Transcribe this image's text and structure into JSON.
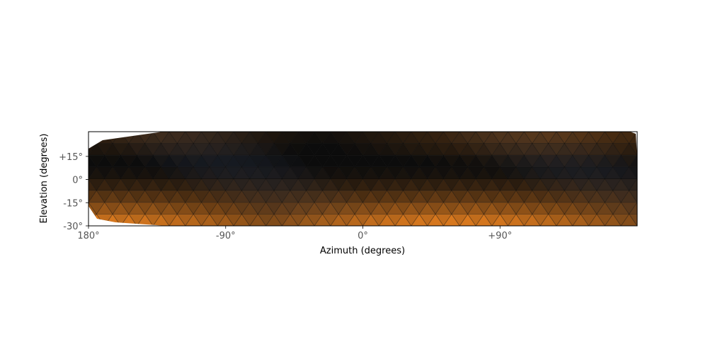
{
  "chart_data": {
    "type": "heatmap",
    "title": "",
    "xlabel": "Azimuth (degrees)",
    "ylabel": "Elevation (degrees)",
    "xlim": [
      180,
      -180
    ],
    "ylim": [
      -30,
      31
    ],
    "x_ticks": [
      {
        "value": 180,
        "label": "180°"
      },
      {
        "value": 90,
        "label": "-90°"
      },
      {
        "value": 0,
        "label": "0°"
      },
      {
        "value": -90,
        "label": "+90°"
      }
    ],
    "y_ticks": [
      {
        "value": 15,
        "label": "+15°"
      },
      {
        "value": 0,
        "label": "0°"
      },
      {
        "value": -15,
        "label": "-15°"
      },
      {
        "value": -30,
        "label": "-30°"
      }
    ],
    "grid": false,
    "colors": {
      "dark": "#0c0c0c",
      "warm": "#ee8420",
      "cool": "#2a3448",
      "mesh_edge": "#000000"
    },
    "mesh": {
      "description_type": "triangulated sky mesh",
      "note": "triangle mesh overlay"
    }
  }
}
